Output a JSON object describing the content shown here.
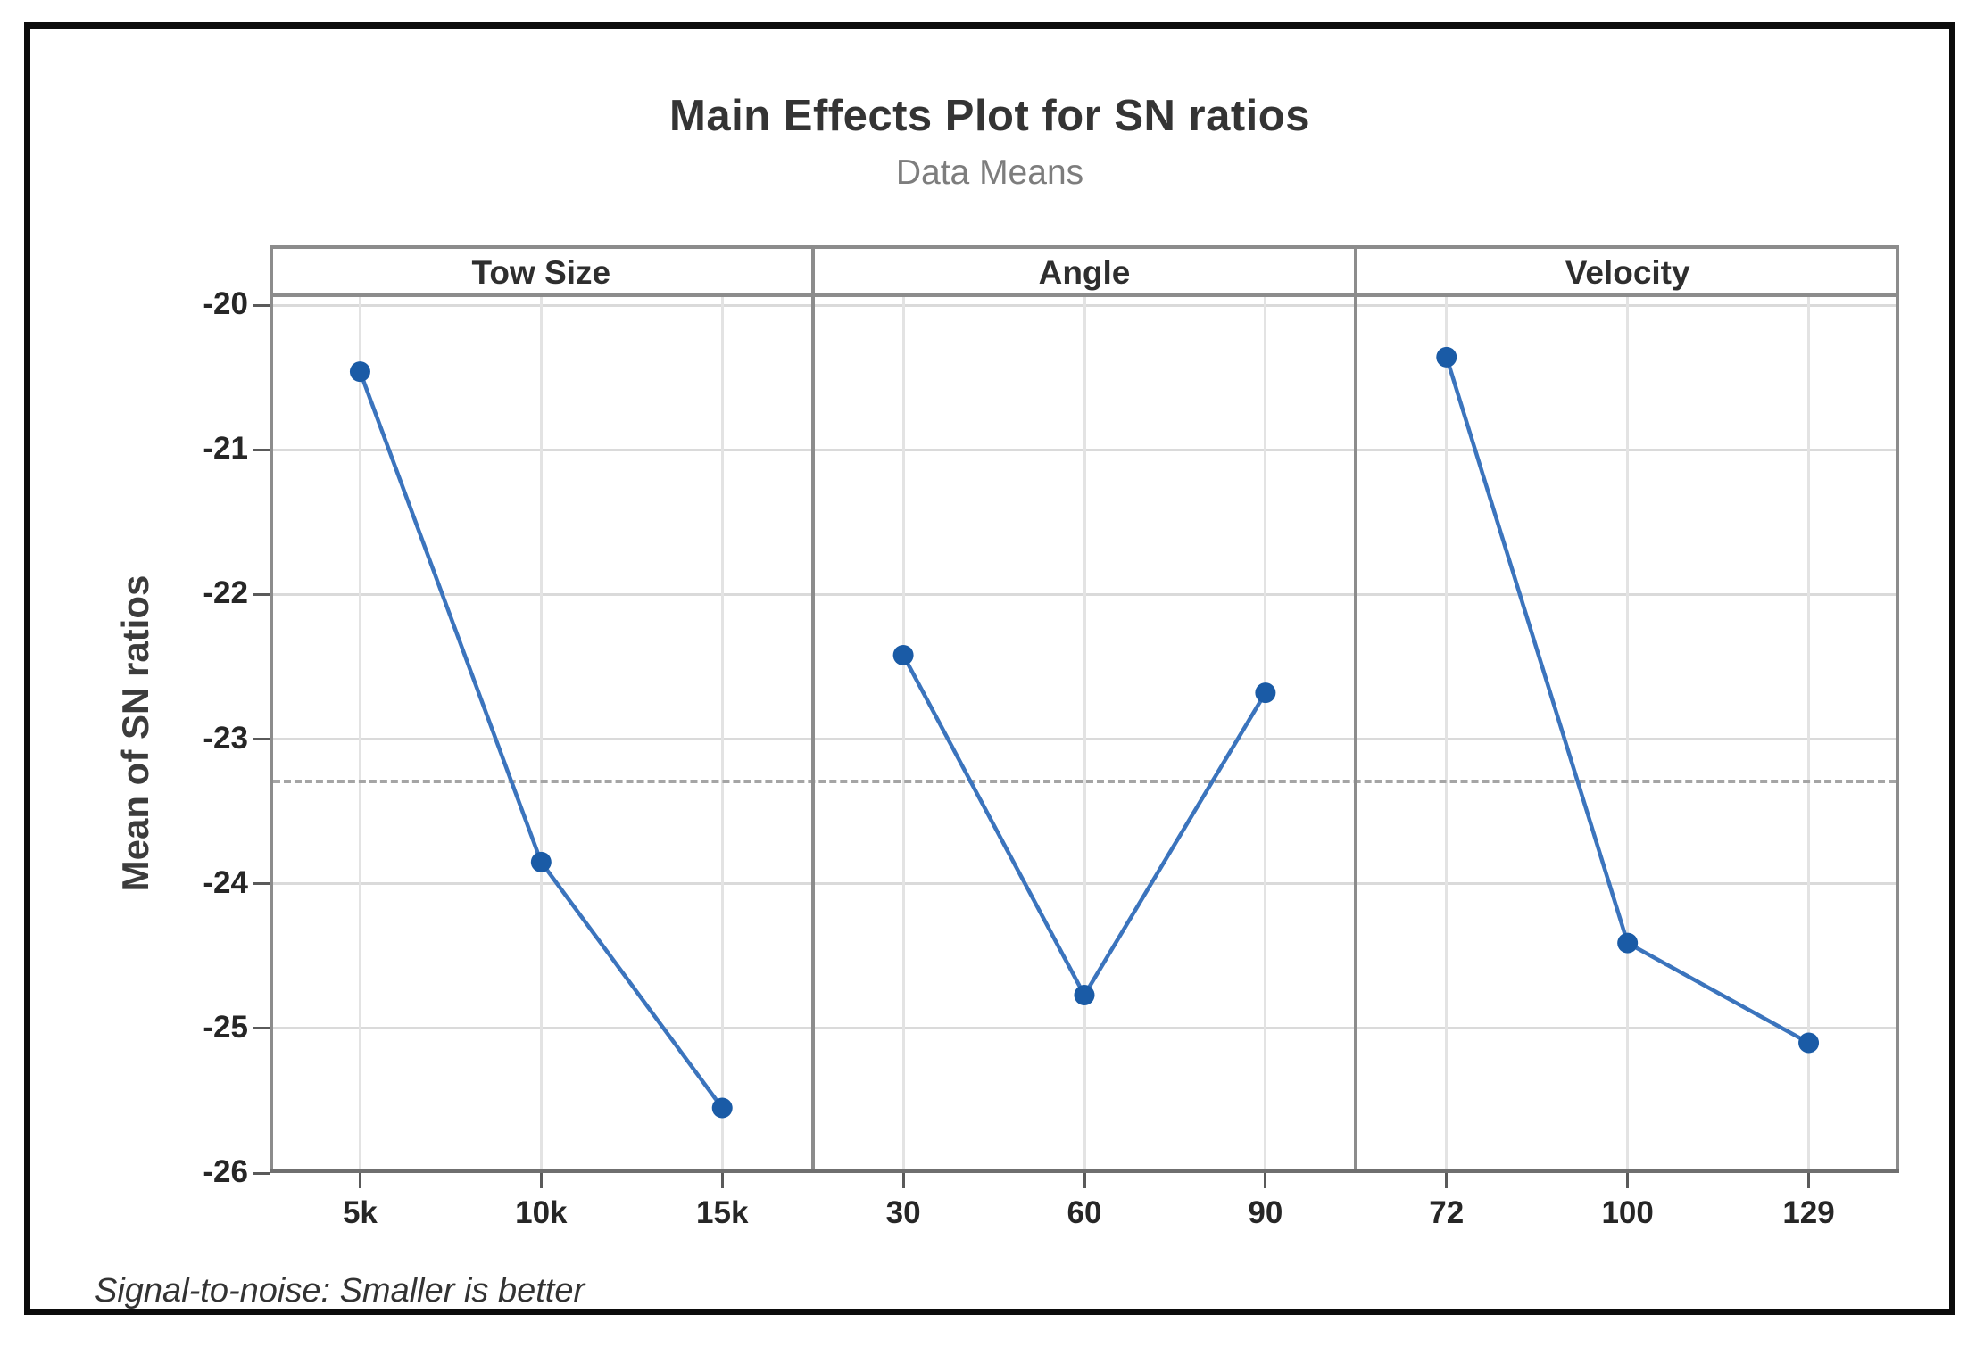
{
  "chart_data": {
    "type": "line",
    "title": "Main Effects Plot for SN ratios",
    "subtitle": "Data Means",
    "ylabel": "Mean of SN ratios",
    "footnote": "Signal-to-noise: Smaller is better",
    "ylim": [
      -26,
      -20
    ],
    "yticks": [
      -20,
      -21,
      -22,
      -23,
      -24,
      -25,
      -26
    ],
    "grid": true,
    "legend": "none",
    "reference_line_mean": -23.29,
    "panels": [
      {
        "label": "Tow Size",
        "categories": [
          "5k",
          "10k",
          "15k"
        ],
        "values": [
          -20.46,
          -23.85,
          -25.55
        ]
      },
      {
        "label": "Angle",
        "categories": [
          "30",
          "60",
          "90"
        ],
        "values": [
          -22.42,
          -24.77,
          -22.68
        ]
      },
      {
        "label": "Velocity",
        "categories": [
          "72",
          "100",
          "129"
        ],
        "values": [
          -20.36,
          -24.41,
          -25.1
        ]
      }
    ],
    "colors": {
      "line": "#3b74bd",
      "marker": "#1a5ba6",
      "reference": "#a5a5a5",
      "grid": "#dadada",
      "panel_border": "#8c8c8c",
      "axis": "#6f6f6f"
    }
  }
}
